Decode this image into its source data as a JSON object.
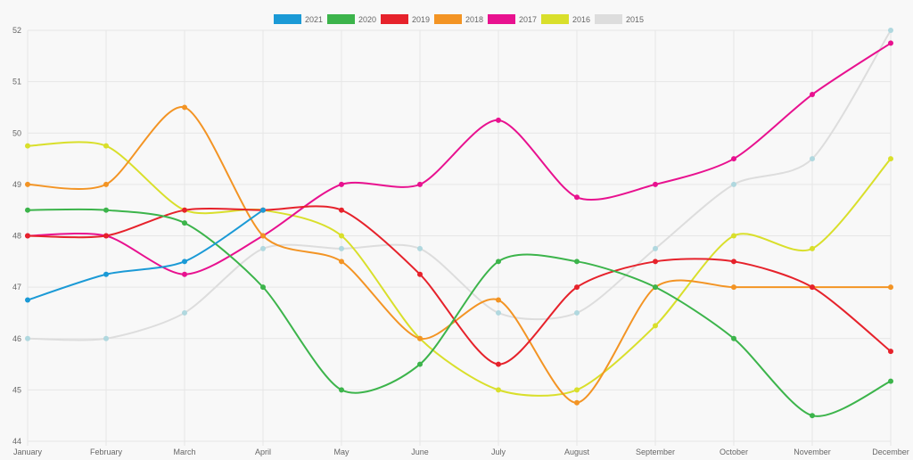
{
  "chart_data": {
    "type": "line",
    "categories": [
      "January",
      "February",
      "March",
      "April",
      "May",
      "June",
      "July",
      "August",
      "September",
      "October",
      "November",
      "December"
    ],
    "ylim": [
      44,
      52
    ],
    "yticks": [
      44,
      45,
      46,
      47,
      48,
      49,
      50,
      51,
      52
    ],
    "grid": true,
    "legend_position": "top",
    "series": [
      {
        "name": "2021",
        "color": "#1b9ad6",
        "values": [
          46.75,
          47.25,
          47.5,
          48.5,
          null,
          null,
          null,
          null,
          null,
          null,
          null,
          null
        ]
      },
      {
        "name": "2020",
        "color": "#3cb44b",
        "values": [
          48.5,
          48.5,
          48.25,
          47,
          45,
          45.5,
          47.5,
          47.5,
          47,
          46,
          44.5,
          45.17
        ]
      },
      {
        "name": "2019",
        "color": "#e6222b",
        "values": [
          48,
          48,
          48.5,
          48.5,
          48.5,
          47.25,
          45.5,
          47,
          47.5,
          47.5,
          47,
          45.75
        ]
      },
      {
        "name": "2018",
        "color": "#f39424",
        "values": [
          49,
          49,
          50.5,
          48,
          47.5,
          46,
          46.75,
          44.75,
          47,
          47,
          47,
          47
        ]
      },
      {
        "name": "2017",
        "color": "#e8118f",
        "values": [
          48,
          48,
          47.25,
          48,
          49,
          49,
          50.25,
          48.75,
          49,
          49.5,
          50.75,
          51.75
        ]
      },
      {
        "name": "2016",
        "color": "#d9df2b",
        "values": [
          49.75,
          49.75,
          48.5,
          48.5,
          48,
          46,
          45,
          45,
          46.25,
          48,
          47.75,
          49.5
        ]
      },
      {
        "name": "2015",
        "color": "#dddddd",
        "point_color": "#b0d8df",
        "values": [
          46,
          46,
          46.5,
          47.75,
          47.75,
          47.75,
          46.5,
          46.5,
          47.75,
          49,
          49.5,
          52
        ]
      }
    ]
  }
}
